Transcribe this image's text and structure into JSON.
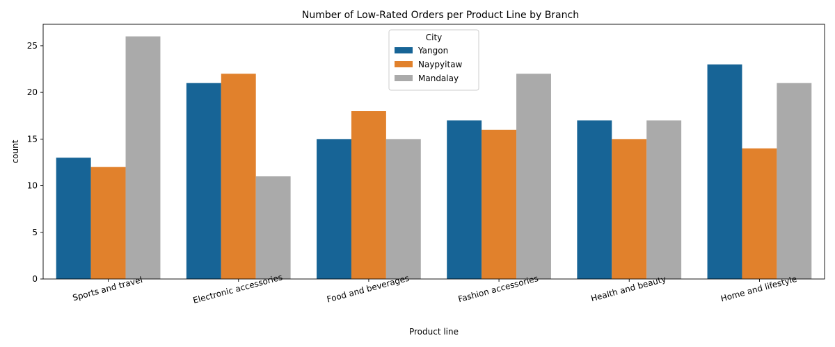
{
  "chart_data": {
    "type": "bar",
    "title": "Number of Low-Rated Orders per Product Line by Branch",
    "xlabel": "Product line",
    "ylabel": "count",
    "categories": [
      "Sports and travel",
      "Electronic accessories",
      "Food and beverages",
      "Fashion accessories",
      "Health and beauty",
      "Home and lifestyle"
    ],
    "series": [
      {
        "name": "Yangon",
        "color": "#176496",
        "values": [
          13,
          21,
          15,
          17,
          17,
          23
        ]
      },
      {
        "name": "Naypyitaw",
        "color": "#e1812c",
        "values": [
          12,
          22,
          18,
          16,
          15,
          14
        ]
      },
      {
        "name": "Mandalay",
        "color": "#aaaaaa",
        "values": [
          26,
          11,
          15,
          22,
          17,
          21
        ]
      }
    ],
    "ylim": [
      0,
      27.3
    ],
    "yticks": [
      0,
      5,
      10,
      15,
      20,
      25
    ],
    "grid": false,
    "legend": {
      "title": "City",
      "placement": "top-center"
    },
    "tick_label_rotation": "15 degrees"
  }
}
